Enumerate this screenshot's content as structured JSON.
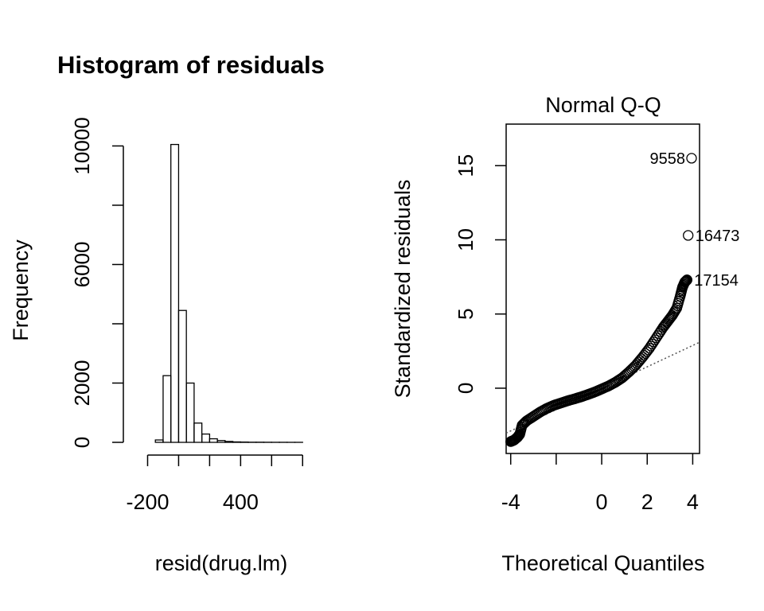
{
  "chart_data": [
    {
      "type": "bar",
      "subtype": "histogram",
      "title": "Histogram of residuals",
      "xlabel": "resid(drug.lm)",
      "ylabel": "Frequency",
      "xlim": [
        -300,
        850
      ],
      "ylim": [
        0,
        10200
      ],
      "x_ticks": [
        -200,
        400
      ],
      "x_tick_marks": [
        -200,
        0,
        200,
        400,
        600,
        800
      ],
      "y_ticks": [
        0,
        2000,
        6000,
        10000
      ],
      "y_tick_marks": [
        0,
        2000,
        4000,
        6000,
        8000,
        10000
      ],
      "bin_width": 50,
      "bins": [
        {
          "start": -150,
          "count": 80
        },
        {
          "start": -100,
          "count": 2250
        },
        {
          "start": -50,
          "count": 10050
        },
        {
          "start": 0,
          "count": 4450
        },
        {
          "start": 50,
          "count": 2000
        },
        {
          "start": 100,
          "count": 650
        },
        {
          "start": 150,
          "count": 280
        },
        {
          "start": 200,
          "count": 120
        },
        {
          "start": 250,
          "count": 60
        },
        {
          "start": 300,
          "count": 30
        },
        {
          "start": 350,
          "count": 15
        },
        {
          "start": 400,
          "count": 10
        },
        {
          "start": 450,
          "count": 5
        },
        {
          "start": 500,
          "count": 5
        },
        {
          "start": 550,
          "count": 3
        },
        {
          "start": 600,
          "count": 2
        },
        {
          "start": 650,
          "count": 2
        },
        {
          "start": 700,
          "count": 1
        },
        {
          "start": 750,
          "count": 1
        }
      ]
    },
    {
      "type": "scatter",
      "subtype": "normal-qq",
      "title": "Normal Q-Q",
      "xlabel": "Theoretical Quantiles",
      "ylabel": "Standardized residuals",
      "xlim": [
        -4.2,
        4.3
      ],
      "ylim": [
        -4.4,
        17.8
      ],
      "x_ticks": [
        -4,
        0,
        2,
        4
      ],
      "x_tick_marks": [
        -4,
        -2,
        0,
        2,
        4
      ],
      "y_ticks": [
        0,
        5,
        10,
        15
      ],
      "points": [
        {
          "x": -4.0,
          "y": -3.6
        },
        {
          "x": -3.85,
          "y": -3.5
        },
        {
          "x": -3.7,
          "y": -3.3
        },
        {
          "x": -3.6,
          "y": -3.1
        },
        {
          "x": -3.5,
          "y": -2.5
        },
        {
          "x": -3.3,
          "y": -2.2
        },
        {
          "x": -3.0,
          "y": -1.9
        },
        {
          "x": -2.7,
          "y": -1.6
        },
        {
          "x": -2.4,
          "y": -1.35
        },
        {
          "x": -2.1,
          "y": -1.15
        },
        {
          "x": -1.8,
          "y": -1.0
        },
        {
          "x": -1.5,
          "y": -0.85
        },
        {
          "x": -1.2,
          "y": -0.72
        },
        {
          "x": -0.9,
          "y": -0.58
        },
        {
          "x": -0.6,
          "y": -0.42
        },
        {
          "x": -0.3,
          "y": -0.25
        },
        {
          "x": 0.0,
          "y": -0.05
        },
        {
          "x": 0.3,
          "y": 0.15
        },
        {
          "x": 0.6,
          "y": 0.4
        },
        {
          "x": 0.9,
          "y": 0.7
        },
        {
          "x": 1.2,
          "y": 1.1
        },
        {
          "x": 1.5,
          "y": 1.55
        },
        {
          "x": 1.8,
          "y": 2.1
        },
        {
          "x": 2.1,
          "y": 2.7
        },
        {
          "x": 2.4,
          "y": 3.4
        },
        {
          "x": 2.7,
          "y": 4.1
        },
        {
          "x": 2.9,
          "y": 4.5
        },
        {
          "x": 3.1,
          "y": 4.9
        },
        {
          "x": 3.3,
          "y": 5.4
        },
        {
          "x": 3.45,
          "y": 6.2
        },
        {
          "x": 3.55,
          "y": 6.8
        },
        {
          "x": 3.65,
          "y": 7.15
        },
        {
          "x": 3.75,
          "y": 7.3
        }
      ],
      "labeled_points": [
        {
          "x": 3.95,
          "y": 15.5,
          "label": "9558",
          "side": "left"
        },
        {
          "x": 3.8,
          "y": 10.3,
          "label": "16473",
          "side": "right"
        },
        {
          "x": 3.75,
          "y": 7.3,
          "label": "17154",
          "side": "right"
        }
      ],
      "reference_line": {
        "intercept": 0.0,
        "slope": 0.72,
        "style": "dotted"
      }
    }
  ]
}
